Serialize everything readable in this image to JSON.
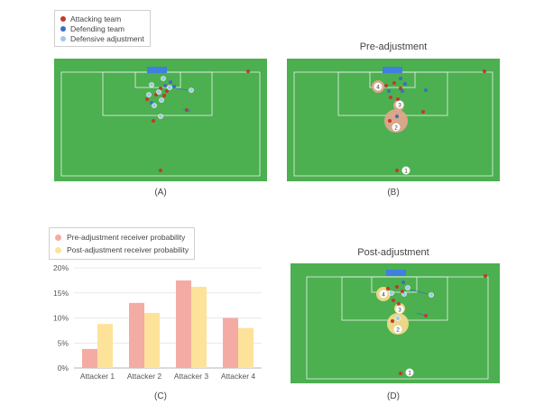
{
  "legend_top": {
    "items": [
      {
        "label": "Attacking team",
        "color": "#c0392b"
      },
      {
        "label": "Defending team",
        "color": "#3b6fc0"
      },
      {
        "label": "Defensive adjustment",
        "color": "#9fc8ea"
      }
    ]
  },
  "legend_bottom": {
    "items": [
      {
        "label": "Pre-adjustment receiver probability",
        "color": "#f4aba4"
      },
      {
        "label": "Post-adjustment receiver probability",
        "color": "#fde29a"
      }
    ]
  },
  "panels": {
    "a": {
      "caption": "(A)",
      "title": ""
    },
    "b": {
      "caption": "(B)",
      "title": "Pre-adjustment"
    },
    "c": {
      "caption": "(C)"
    },
    "d": {
      "caption": "(D)",
      "title": "Post-adjustment"
    }
  },
  "pitch_labels": {
    "b": [
      "1",
      "2",
      "3",
      "4"
    ],
    "d": [
      "1",
      "2",
      "3",
      "4"
    ]
  },
  "colors": {
    "pitch": "#4caf50",
    "pitch_line": "#e8f5e9",
    "goal": "#3f7fe0",
    "attacker": "#c0392b",
    "defender": "#3b6fc0",
    "adjust": "#9fc8ea",
    "pre_bubble": "#e8a58f",
    "post_bubble": "#f2d98a"
  },
  "chart_data": {
    "type": "bar",
    "categories": [
      "Attacker 1",
      "Attacker 2",
      "Attacker 3",
      "Attacker 4"
    ],
    "series": [
      {
        "name": "Pre-adjustment receiver probability",
        "values": [
          3.8,
          13.0,
          17.5,
          10.0
        ],
        "color": "#f4aba4"
      },
      {
        "name": "Post-adjustment receiver probability",
        "values": [
          8.8,
          11.0,
          16.2,
          8.0
        ],
        "color": "#fde29a"
      }
    ],
    "ylim": [
      0,
      20
    ],
    "yticks": [
      "0%",
      "5%",
      "10%",
      "15%",
      "20%"
    ],
    "grid": true,
    "legend": "top-left"
  }
}
